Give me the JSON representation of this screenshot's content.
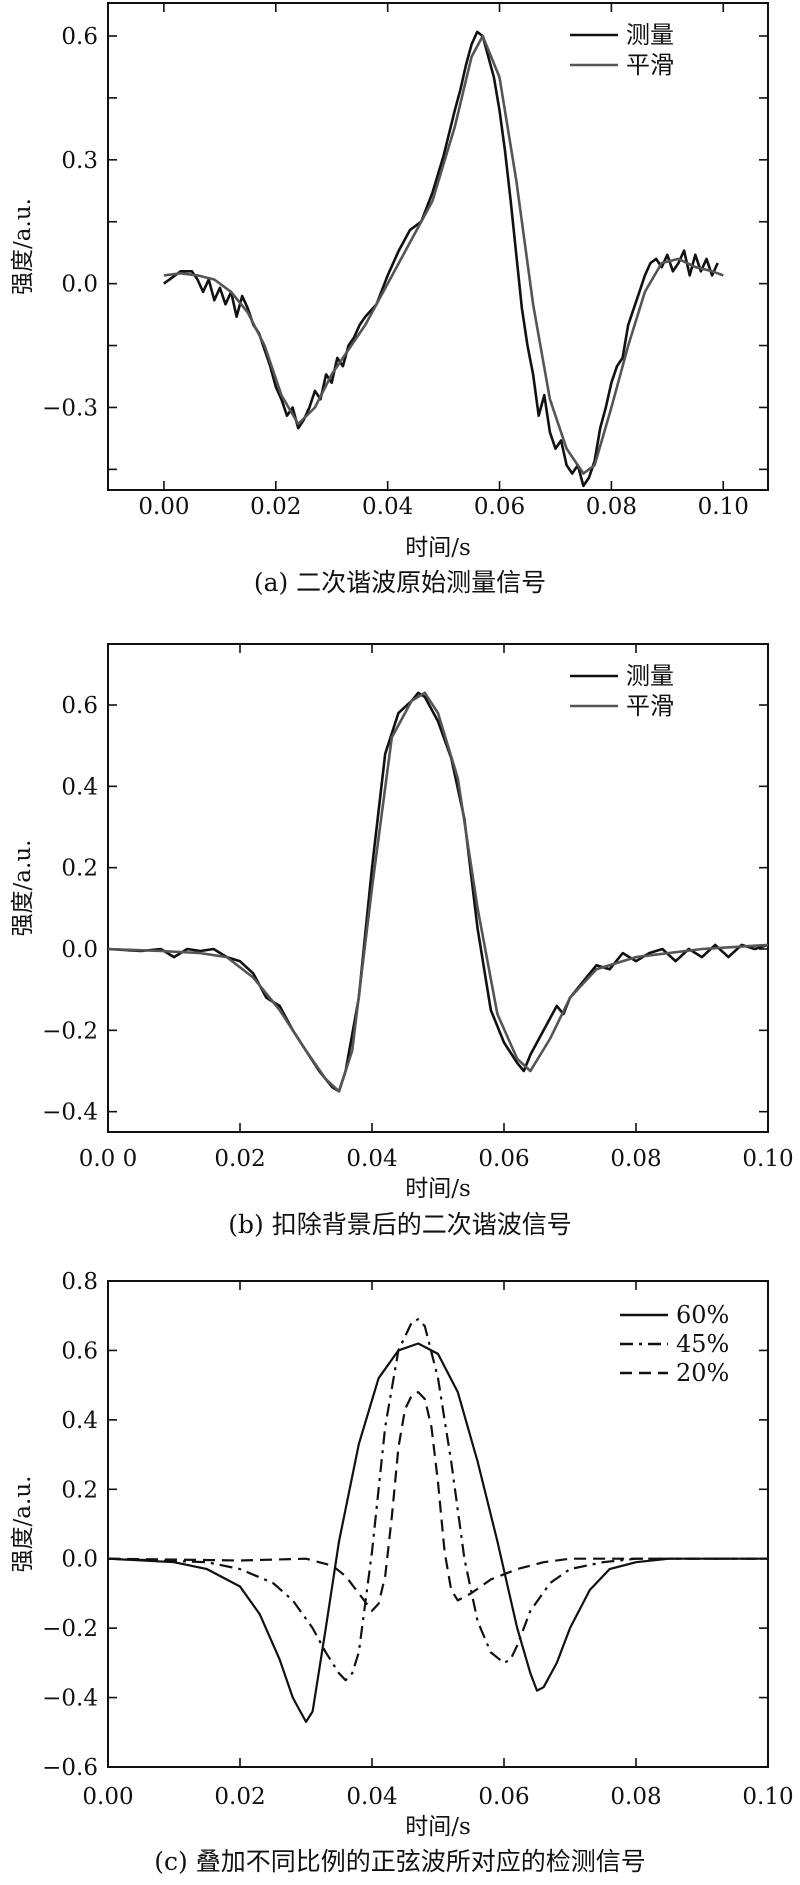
{
  "chart_data": [
    {
      "id": "a",
      "type": "line",
      "caption": "(a) 二次谐波原始测量信号",
      "xlabel": "时间/s",
      "ylabel": "强度/a.u.",
      "xlim": [
        -0.01,
        0.108
      ],
      "ylim": [
        -0.5,
        0.68
      ],
      "xticks": [
        0.0,
        0.02,
        0.04,
        0.06,
        0.08,
        0.1
      ],
      "xtick_labels": [
        "0.00",
        "0.02",
        "0.04",
        "0.06",
        "0.08",
        "0.10"
      ],
      "yticks": [
        -0.45,
        -0.3,
        -0.15,
        0.0,
        0.15,
        0.3,
        0.45,
        0.6
      ],
      "ytick_labels": [
        "",
        "−0.3",
        "",
        "0.0",
        "",
        "0.3",
        "",
        "0.6"
      ],
      "legend_position": "top-right",
      "series": [
        {
          "name": "测量",
          "color": "#111111",
          "x": [
            0.0,
            0.002,
            0.003,
            0.005,
            0.006,
            0.007,
            0.008,
            0.009,
            0.01,
            0.011,
            0.012,
            0.013,
            0.014,
            0.015,
            0.016,
            0.017,
            0.018,
            0.019,
            0.02,
            0.021,
            0.022,
            0.023,
            0.024,
            0.025,
            0.026,
            0.027,
            0.028,
            0.029,
            0.03,
            0.031,
            0.032,
            0.033,
            0.034,
            0.035,
            0.036,
            0.038,
            0.04,
            0.042,
            0.044,
            0.046,
            0.048,
            0.05,
            0.052,
            0.053,
            0.054,
            0.055,
            0.056,
            0.057,
            0.058,
            0.059,
            0.06,
            0.061,
            0.062,
            0.063,
            0.064,
            0.065,
            0.066,
            0.067,
            0.068,
            0.069,
            0.07,
            0.071,
            0.072,
            0.073,
            0.074,
            0.075,
            0.076,
            0.077,
            0.078,
            0.079,
            0.08,
            0.081,
            0.082,
            0.083,
            0.084,
            0.085,
            0.086,
            0.087,
            0.088,
            0.089,
            0.09,
            0.091,
            0.092,
            0.093,
            0.094,
            0.095,
            0.096,
            0.097,
            0.098,
            0.099
          ],
          "y": [
            0.0,
            0.02,
            0.03,
            0.03,
            0.01,
            -0.02,
            0.01,
            -0.04,
            -0.01,
            -0.05,
            -0.02,
            -0.08,
            -0.03,
            -0.06,
            -0.1,
            -0.12,
            -0.16,
            -0.2,
            -0.25,
            -0.28,
            -0.32,
            -0.3,
            -0.35,
            -0.33,
            -0.3,
            -0.26,
            -0.28,
            -0.22,
            -0.24,
            -0.18,
            -0.2,
            -0.15,
            -0.13,
            -0.1,
            -0.08,
            -0.05,
            0.02,
            0.08,
            0.13,
            0.15,
            0.22,
            0.31,
            0.42,
            0.47,
            0.53,
            0.58,
            0.61,
            0.6,
            0.55,
            0.5,
            0.42,
            0.32,
            0.2,
            0.07,
            -0.06,
            -0.15,
            -0.22,
            -0.32,
            -0.27,
            -0.36,
            -0.4,
            -0.38,
            -0.44,
            -0.46,
            -0.44,
            -0.49,
            -0.47,
            -0.43,
            -0.35,
            -0.3,
            -0.24,
            -0.2,
            -0.18,
            -0.1,
            -0.06,
            -0.02,
            0.02,
            0.05,
            0.06,
            0.04,
            0.07,
            0.03,
            0.05,
            0.08,
            0.02,
            0.07,
            0.03,
            0.06,
            0.02,
            0.05
          ]
        },
        {
          "name": "平滑",
          "color": "#555555",
          "x": [
            0.0,
            0.003,
            0.006,
            0.009,
            0.012,
            0.015,
            0.018,
            0.021,
            0.024,
            0.027,
            0.03,
            0.033,
            0.036,
            0.04,
            0.044,
            0.048,
            0.052,
            0.055,
            0.057,
            0.06,
            0.063,
            0.066,
            0.069,
            0.072,
            0.075,
            0.077,
            0.08,
            0.083,
            0.086,
            0.089,
            0.092,
            0.095,
            0.098,
            0.1
          ],
          "y": [
            0.02,
            0.025,
            0.02,
            0.01,
            -0.02,
            -0.07,
            -0.15,
            -0.27,
            -0.34,
            -0.3,
            -0.22,
            -0.16,
            -0.1,
            0.0,
            0.1,
            0.2,
            0.38,
            0.55,
            0.6,
            0.5,
            0.25,
            -0.05,
            -0.28,
            -0.4,
            -0.46,
            -0.44,
            -0.3,
            -0.15,
            -0.02,
            0.05,
            0.06,
            0.04,
            0.03,
            0.02
          ]
        }
      ]
    },
    {
      "id": "b",
      "type": "line",
      "caption": "(b) 扣除背景后的二次谐波信号",
      "xlabel": "时间/s",
      "ylabel": "强度/a.u.",
      "xlim": [
        0.0,
        0.1
      ],
      "ylim": [
        -0.45,
        0.75
      ],
      "xticks": [
        0.0,
        0.02,
        0.04,
        0.06,
        0.08,
        0.1
      ],
      "xtick_labels": [
        "0.0 0",
        "0.02",
        "0.04",
        "0.06",
        "0.08",
        "0.10"
      ],
      "yticks": [
        -0.4,
        -0.2,
        0.0,
        0.2,
        0.4,
        0.6
      ],
      "ytick_labels": [
        "−0.4",
        "−0.2",
        "0.0",
        "0.2",
        "0.4",
        "0.6"
      ],
      "legend_position": "top-right",
      "series": [
        {
          "name": "测量",
          "color": "#111111",
          "x": [
            0.0,
            0.005,
            0.008,
            0.01,
            0.012,
            0.014,
            0.016,
            0.018,
            0.02,
            0.022,
            0.024,
            0.026,
            0.028,
            0.03,
            0.032,
            0.034,
            0.035,
            0.036,
            0.038,
            0.04,
            0.042,
            0.044,
            0.046,
            0.047,
            0.048,
            0.05,
            0.052,
            0.054,
            0.056,
            0.058,
            0.06,
            0.062,
            0.063,
            0.064,
            0.066,
            0.068,
            0.069,
            0.07,
            0.072,
            0.074,
            0.076,
            0.078,
            0.08,
            0.082,
            0.084,
            0.086,
            0.088,
            0.09,
            0.092,
            0.094,
            0.096,
            0.098,
            0.1
          ],
          "y": [
            0.0,
            -0.005,
            0.0,
            -0.02,
            0.0,
            -0.005,
            0.0,
            -0.02,
            -0.03,
            -0.06,
            -0.12,
            -0.14,
            -0.2,
            -0.25,
            -0.3,
            -0.34,
            -0.35,
            -0.3,
            -0.12,
            0.2,
            0.48,
            0.58,
            0.61,
            0.63,
            0.62,
            0.56,
            0.47,
            0.32,
            0.05,
            -0.15,
            -0.23,
            -0.28,
            -0.3,
            -0.26,
            -0.2,
            -0.14,
            -0.16,
            -0.12,
            -0.08,
            -0.04,
            -0.05,
            -0.01,
            -0.03,
            -0.01,
            0.0,
            -0.03,
            0.0,
            -0.02,
            0.01,
            -0.02,
            0.01,
            0.0,
            0.01
          ]
        },
        {
          "name": "平滑",
          "color": "#555555",
          "x": [
            0.0,
            0.008,
            0.014,
            0.018,
            0.022,
            0.026,
            0.03,
            0.033,
            0.035,
            0.037,
            0.04,
            0.043,
            0.046,
            0.048,
            0.05,
            0.053,
            0.056,
            0.059,
            0.062,
            0.064,
            0.067,
            0.07,
            0.074,
            0.08,
            0.09,
            0.1
          ],
          "y": [
            0.0,
            -0.005,
            -0.01,
            -0.02,
            -0.07,
            -0.15,
            -0.25,
            -0.32,
            -0.35,
            -0.25,
            0.15,
            0.52,
            0.61,
            0.63,
            0.58,
            0.42,
            0.1,
            -0.16,
            -0.27,
            -0.3,
            -0.22,
            -0.12,
            -0.05,
            -0.02,
            0.0,
            0.01
          ]
        }
      ]
    },
    {
      "id": "c",
      "type": "line",
      "caption": "(c) 叠加不同比例的正弦波所对应的检测信号",
      "xlabel": "时间/s",
      "ylabel": "强度/a.u.",
      "xlim": [
        0.0,
        0.1
      ],
      "ylim": [
        -0.6,
        0.8
      ],
      "xticks": [
        0.0,
        0.02,
        0.04,
        0.06,
        0.08,
        0.1
      ],
      "xtick_labels": [
        "0.00",
        "0.02",
        "0.04",
        "0.06",
        "0.08",
        "0.10"
      ],
      "yticks": [
        -0.6,
        -0.4,
        -0.2,
        0.0,
        0.2,
        0.4,
        0.6,
        0.8
      ],
      "ytick_labels": [
        "−0.6",
        "−0.4",
        "−0.2",
        "0.0",
        "0.2",
        "0.4",
        "0.6",
        "0.8"
      ],
      "legend_position": "top-right",
      "series": [
        {
          "name": "60%",
          "color": "#111111",
          "dash": "solid",
          "x": [
            0.0,
            0.01,
            0.015,
            0.02,
            0.023,
            0.026,
            0.028,
            0.03,
            0.031,
            0.033,
            0.035,
            0.038,
            0.041,
            0.044,
            0.047,
            0.05,
            0.053,
            0.056,
            0.059,
            0.062,
            0.064,
            0.065,
            0.066,
            0.068,
            0.07,
            0.073,
            0.076,
            0.08,
            0.085,
            0.1
          ],
          "y": [
            0.0,
            -0.01,
            -0.03,
            -0.08,
            -0.16,
            -0.29,
            -0.4,
            -0.47,
            -0.44,
            -0.2,
            0.05,
            0.33,
            0.52,
            0.6,
            0.62,
            0.59,
            0.48,
            0.28,
            0.05,
            -0.2,
            -0.33,
            -0.38,
            -0.37,
            -0.3,
            -0.2,
            -0.09,
            -0.03,
            -0.01,
            0.0,
            0.0
          ]
        },
        {
          "name": "45%",
          "color": "#111111",
          "dash": "dashdot",
          "x": [
            0.0,
            0.015,
            0.02,
            0.025,
            0.028,
            0.031,
            0.033,
            0.035,
            0.036,
            0.037,
            0.038,
            0.04,
            0.042,
            0.044,
            0.046,
            0.047,
            0.048,
            0.05,
            0.052,
            0.054,
            0.056,
            0.058,
            0.06,
            0.061,
            0.062,
            0.064,
            0.067,
            0.07,
            0.075,
            0.08,
            0.1
          ],
          "y": [
            0.0,
            -0.01,
            -0.03,
            -0.07,
            -0.12,
            -0.2,
            -0.27,
            -0.33,
            -0.35,
            -0.33,
            -0.27,
            0.02,
            0.38,
            0.6,
            0.68,
            0.69,
            0.67,
            0.52,
            0.28,
            0.0,
            -0.18,
            -0.27,
            -0.3,
            -0.29,
            -0.25,
            -0.15,
            -0.07,
            -0.03,
            -0.01,
            0.0,
            0.0
          ]
        },
        {
          "name": "20%",
          "color": "#111111",
          "dash": "dashed",
          "x": [
            0.0,
            0.02,
            0.03,
            0.034,
            0.036,
            0.038,
            0.04,
            0.041,
            0.042,
            0.043,
            0.044,
            0.045,
            0.046,
            0.047,
            0.048,
            0.049,
            0.05,
            0.051,
            0.052,
            0.053,
            0.055,
            0.058,
            0.062,
            0.066,
            0.07,
            0.08,
            0.1
          ],
          "y": [
            0.0,
            -0.005,
            0.0,
            -0.02,
            -0.05,
            -0.1,
            -0.15,
            -0.13,
            -0.05,
            0.12,
            0.32,
            0.43,
            0.47,
            0.48,
            0.46,
            0.38,
            0.22,
            0.02,
            -0.09,
            -0.12,
            -0.1,
            -0.06,
            -0.03,
            -0.01,
            0.0,
            0.0,
            0.0
          ]
        }
      ]
    }
  ]
}
